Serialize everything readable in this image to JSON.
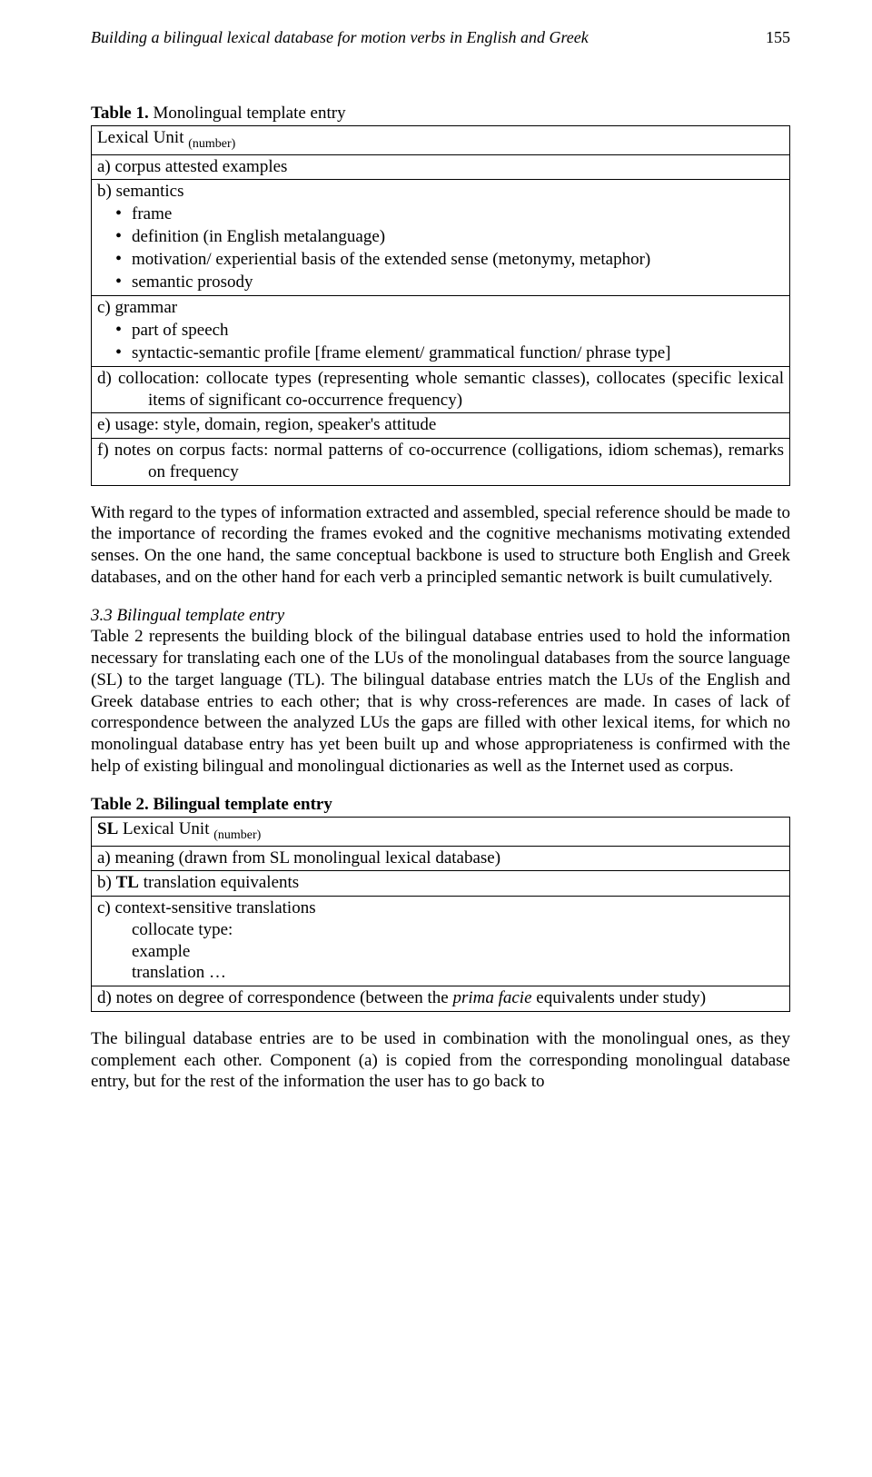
{
  "header": {
    "running_title": "Building a bilingual lexical database for motion verbs in English and Greek",
    "page_number": "155"
  },
  "table1": {
    "caption_label": "Table 1.",
    "caption_text": " Monolingual template entry",
    "row1_prefix": "Lexical Unit ",
    "row1_sub": "(number)",
    "row2": "a) corpus attested examples",
    "row3_head": "b) semantics",
    "row3_b1": "frame",
    "row3_b2": "definition (in English metalanguage)",
    "row3_b3": "motivation/ experiential basis of the extended sense (metonymy, metaphor)",
    "row3_b4": "semantic prosody",
    "row4_head": "c) grammar",
    "row4_b1": "part of speech",
    "row4_b2": "syntactic-semantic profile [frame element/ grammatical function/ phrase type]",
    "row5": "d) collocation: collocate types (representing whole semantic classes), collocates (specific lexical items of significant co-occurrence frequency)",
    "row6": "e) usage: style, domain, region, speaker's attitude",
    "row7": "f) notes on corpus facts: normal patterns of co-occurrence (colligations, idiom schemas), remarks on frequency"
  },
  "para1": "With regard to the types of information extracted and assembled, special reference should be made to the importance of recording the frames evoked and the cognitive mechanisms motivating extended senses. On the one hand, the same conceptual backbone is used to structure both English and Greek databases, and on the other hand for each verb a principled semantic network is built cumulatively.",
  "sec33_head": "3.3 Bilingual template entry",
  "para2": "Table 2 represents the building block of the bilingual database entries used to hold the information necessary for translating each one of the LUs of the monolingual databases from the source language (SL) to the target language (TL). The bilingual database entries match the LUs of the English and Greek database entries to each other; that is why cross-references are made. In cases of lack of correspondence between the analyzed LUs the gaps are filled with other lexical items, for which no monolingual database entry has yet been built up and whose appropriateness is confirmed with the help of existing bilingual and monolingual dictionaries as well as the Internet used as corpus.",
  "table2": {
    "caption": "Table 2. Bilingual template entry",
    "row1_prefix": "SL",
    "row1_mid": " Lexical Unit ",
    "row1_sub": "(number)",
    "row2": "a) meaning (drawn from SL monolingual lexical database)",
    "row3_prefix": "b) ",
    "row3_bold": "TL",
    "row3_rest": " translation equivalents",
    "row4_head": "c) context-sensitive translations",
    "row4_l1": "collocate type:",
    "row4_l2": "example",
    "row4_l3": "translation …",
    "row5_a": "d) notes on degree of correspondence (between the ",
    "row5_ital": "prima facie",
    "row5_b": " equivalents under study)"
  },
  "para3": "The bilingual database entries are to be used in combination with the monolingual ones, as they complement each other. Component (a) is copied from the corresponding monolingual database entry, but for the rest of the information the user has to go back to"
}
